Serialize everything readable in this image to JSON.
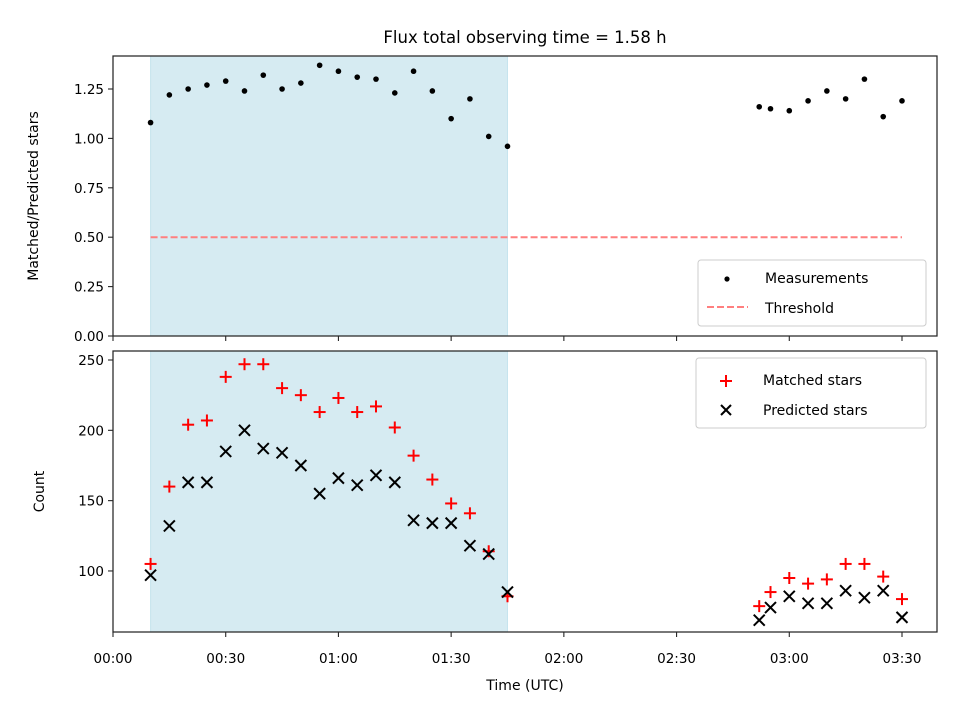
{
  "chart_data": [
    {
      "type": "scatter",
      "title": "Flux total observing time = 1.58 h",
      "xlabel": "",
      "ylabel": "Matched/Predicted stars",
      "ylim": [
        0,
        1.417
      ],
      "xlim_minutes": [
        0,
        220
      ],
      "y_ticks": [
        "0.00",
        "0.25",
        "0.50",
        "0.75",
        "1.00",
        "1.25"
      ],
      "y_tick_values": [
        0,
        0.25,
        0.5,
        0.75,
        1.0,
        1.25
      ],
      "shaded_region": {
        "start": "00:10",
        "end": "01:45",
        "color": "#add8e6"
      },
      "legend": {
        "placement": "lower-right",
        "entries": [
          "Measurements",
          "Threshold"
        ]
      },
      "series": [
        {
          "name": "Measurements",
          "marker": "dot",
          "color": "#000000",
          "x": [
            "00:10",
            "00:15",
            "00:20",
            "00:25",
            "00:30",
            "00:35",
            "00:40",
            "00:45",
            "00:50",
            "00:55",
            "01:00",
            "01:05",
            "01:10",
            "01:15",
            "01:20",
            "01:25",
            "01:30",
            "01:35",
            "01:40",
            "01:45",
            "02:52",
            "02:55",
            "03:00",
            "03:05",
            "03:10",
            "03:15",
            "03:20",
            "03:25",
            "03:30"
          ],
          "values": [
            1.08,
            1.22,
            1.25,
            1.27,
            1.29,
            1.24,
            1.32,
            1.25,
            1.28,
            1.37,
            1.34,
            1.31,
            1.3,
            1.23,
            1.34,
            1.24,
            1.1,
            1.2,
            1.01,
            0.96,
            1.16,
            1.15,
            1.14,
            1.19,
            1.24,
            1.2,
            1.3,
            1.11,
            1.19
          ]
        },
        {
          "name": "Threshold",
          "style": "dashed",
          "color": "#ff7f7f",
          "x": [
            "00:10",
            "03:30"
          ],
          "values": [
            0.5,
            0.5
          ]
        }
      ]
    },
    {
      "type": "scatter",
      "title": "",
      "xlabel": "Time (UTC)",
      "ylabel": "Count",
      "ylim": [
        56.6,
        256.4
      ],
      "xlim_minutes": [
        0,
        220
      ],
      "y_ticks": [
        "100",
        "150",
        "200",
        "250"
      ],
      "y_tick_values": [
        100,
        150,
        200,
        250
      ],
      "x_ticks": [
        "00:00",
        "00:30",
        "01:00",
        "01:30",
        "02:00",
        "02:30",
        "03:00",
        "03:30"
      ],
      "x_tick_minutes": [
        0,
        30,
        60,
        90,
        120,
        150,
        180,
        210
      ],
      "shaded_region": {
        "start": "00:10",
        "end": "01:45",
        "color": "#add8e6"
      },
      "legend": {
        "placement": "upper-right",
        "entries": [
          "Matched stars",
          "Predicted stars"
        ]
      },
      "series": [
        {
          "name": "Matched stars",
          "marker": "plus",
          "color": "#ff0000",
          "x": [
            "00:10",
            "00:15",
            "00:20",
            "00:25",
            "00:30",
            "00:35",
            "00:40",
            "00:45",
            "00:50",
            "00:55",
            "01:00",
            "01:05",
            "01:10",
            "01:15",
            "01:20",
            "01:25",
            "01:30",
            "01:35",
            "01:40",
            "01:45",
            "02:52",
            "02:55",
            "03:00",
            "03:05",
            "03:10",
            "03:15",
            "03:20",
            "03:25",
            "03:30"
          ],
          "values": [
            105,
            160,
            204,
            207,
            238,
            247,
            247,
            230,
            225,
            213,
            223,
            213,
            217,
            202,
            182,
            165,
            148,
            141,
            114,
            82,
            75,
            85,
            95,
            91,
            94,
            105,
            105,
            96,
            80
          ]
        },
        {
          "name": "Predicted stars",
          "marker": "x",
          "color": "#000000",
          "x": [
            "00:10",
            "00:15",
            "00:20",
            "00:25",
            "00:30",
            "00:35",
            "00:40",
            "00:45",
            "00:50",
            "00:55",
            "01:00",
            "01:05",
            "01:10",
            "01:15",
            "01:20",
            "01:25",
            "01:30",
            "01:35",
            "01:40",
            "01:45",
            "02:52",
            "02:55",
            "03:00",
            "03:05",
            "03:10",
            "03:15",
            "03:20",
            "03:25",
            "03:30"
          ],
          "values": [
            97,
            132,
            163,
            163,
            185,
            200,
            187,
            184,
            175,
            155,
            166,
            161,
            168,
            163,
            136,
            134,
            134,
            118,
            112,
            85,
            65,
            74,
            82,
            77,
            77,
            86,
            81,
            86,
            67
          ]
        }
      ]
    }
  ]
}
